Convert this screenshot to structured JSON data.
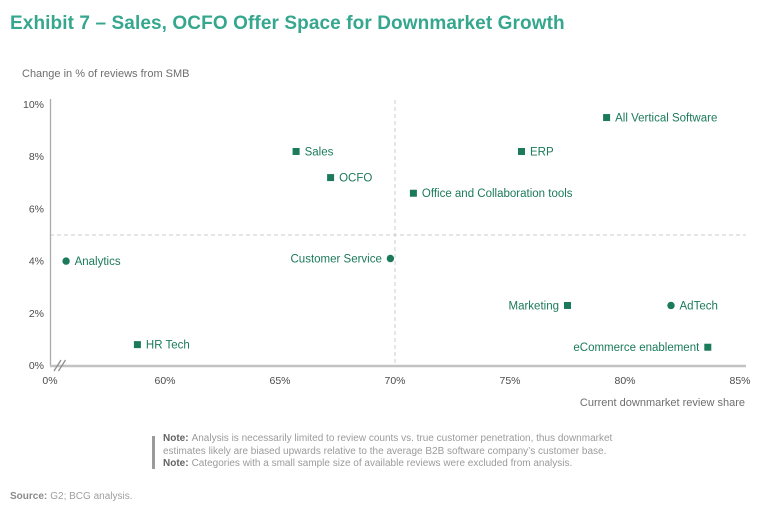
{
  "title": "Exhibit 7 – Sales, OCFO Offer Space for Downmarket Growth",
  "colors": {
    "title_teal": "#35A78E",
    "data_green": "#1B7A5B",
    "x_axis_line": "#C2C2C2",
    "y_axis_line": "#ABABAB",
    "dashed_line": "#CDCDCD",
    "tick_text": "#4C4C4C"
  },
  "chart_data": {
    "type": "scatter",
    "ylabel": "Change in % of reviews from SMB",
    "xlabel": "Current downmarket review share",
    "x_ticks": [
      0,
      60,
      65,
      70,
      75,
      80,
      85
    ],
    "x_tick_labels": [
      "0%",
      "60%",
      "65%",
      "70%",
      "75%",
      "80%",
      "85%"
    ],
    "y_ticks": [
      0,
      2,
      4,
      6,
      8,
      10
    ],
    "y_tick_labels": [
      "0%",
      "2%",
      "4%",
      "6%",
      "8%",
      "10%"
    ],
    "x_axis_break_after_zero": true,
    "xlim": [
      0,
      85
    ],
    "ylim": [
      0,
      10
    ],
    "grid": false,
    "reference_lines": {
      "x": 70,
      "y": 5,
      "style": "dashed"
    },
    "points": [
      {
        "label": "All Vertical Software",
        "x": 79.2,
        "y": 9.5,
        "marker": "square",
        "label_side": "right"
      },
      {
        "label": "Sales",
        "x": 65.7,
        "y": 8.2,
        "marker": "square",
        "label_side": "right"
      },
      {
        "label": "ERP",
        "x": 75.5,
        "y": 8.2,
        "marker": "square",
        "label_side": "right"
      },
      {
        "label": "OCFO",
        "x": 67.2,
        "y": 7.2,
        "marker": "square",
        "label_side": "right"
      },
      {
        "label": "Office and Collaboration tools",
        "x": 70.8,
        "y": 6.6,
        "marker": "square",
        "label_side": "right"
      },
      {
        "label": "Customer Service",
        "x": 69.8,
        "y": 4.1,
        "marker": "circle",
        "label_side": "left"
      },
      {
        "label": "Analytics",
        "x": 55.7,
        "y": 4.0,
        "marker": "circle",
        "label_side": "right"
      },
      {
        "label": "Marketing",
        "x": 77.5,
        "y": 2.3,
        "marker": "square",
        "label_side": "left"
      },
      {
        "label": "AdTech",
        "x": 82.0,
        "y": 2.3,
        "marker": "circle",
        "label_side": "right"
      },
      {
        "label": "HR Tech",
        "x": 58.8,
        "y": 0.8,
        "marker": "square",
        "label_side": "right"
      },
      {
        "label": "eCommerce enablement",
        "x": 83.6,
        "y": 0.7,
        "marker": "square",
        "label_side": "left"
      }
    ]
  },
  "notes": [
    {
      "prefix": "Note:",
      "text": "Analysis is necessarily limited to review counts vs. true customer penetration, thus downmarket estimates likely are biased upwards relative to the average B2B software company’s customer base."
    },
    {
      "prefix": "Note:",
      "text": "Categories with a small sample size of available reviews were excluded from analysis."
    }
  ],
  "source": {
    "prefix": "Source:",
    "text": "G2; BCG analysis."
  }
}
